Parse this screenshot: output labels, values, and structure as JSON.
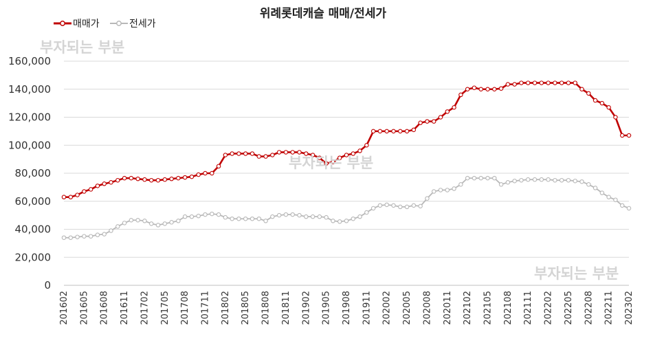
{
  "chart_data": {
    "type": "line",
    "title": "위례롯데캐슬 매매/전세가",
    "xlabel": "",
    "ylabel": "",
    "ylim": [
      0,
      160000
    ],
    "yticks": [
      "0",
      "20,000",
      "40,000",
      "60,000",
      "80,000",
      "100,000",
      "120,000",
      "140,000",
      "160,000"
    ],
    "x_tick_labels": [
      "201602",
      "201605",
      "201608",
      "201611",
      "201702",
      "201705",
      "201708",
      "201711",
      "201802",
      "201805",
      "201808",
      "201811",
      "201902",
      "201905",
      "201908",
      "201911",
      "202002",
      "202005",
      "202008",
      "202011",
      "202102",
      "202105",
      "202108",
      "202111",
      "202202",
      "202205",
      "202208",
      "202211",
      "202302"
    ],
    "x": [
      "201602",
      "201603",
      "201604",
      "201605",
      "201606",
      "201607",
      "201608",
      "201609",
      "201610",
      "201611",
      "201612",
      "201701",
      "201702",
      "201703",
      "201704",
      "201705",
      "201706",
      "201707",
      "201708",
      "201709",
      "201710",
      "201711",
      "201712",
      "201801",
      "201802",
      "201803",
      "201804",
      "201805",
      "201806",
      "201807",
      "201808",
      "201809",
      "201810",
      "201811",
      "201812",
      "201901",
      "201902",
      "201903",
      "201904",
      "201905",
      "201906",
      "201907",
      "201908",
      "201909",
      "201910",
      "201911",
      "201912",
      "202001",
      "202002",
      "202003",
      "202004",
      "202005",
      "202006",
      "202007",
      "202008",
      "202009",
      "202010",
      "202011",
      "202012",
      "202101",
      "202102",
      "202103",
      "202104",
      "202105",
      "202106",
      "202107",
      "202108",
      "202109",
      "202110",
      "202111",
      "202112",
      "202201",
      "202202",
      "202203",
      "202204",
      "202205",
      "202206",
      "202207",
      "202208",
      "202209",
      "202210",
      "202211",
      "202212",
      "202301",
      "202302"
    ],
    "grid": "horizontal",
    "legend_position": "top-left",
    "series": [
      {
        "name": "매매가",
        "color": "#c00000",
        "values": [
          63000,
          63000,
          64500,
          67000,
          68500,
          71000,
          72500,
          73500,
          75000,
          76500,
          76500,
          76000,
          75500,
          75000,
          75000,
          75500,
          76000,
          76500,
          77000,
          77500,
          79000,
          80000,
          80000,
          85000,
          93000,
          94000,
          94000,
          94000,
          94000,
          92000,
          92000,
          93000,
          95000,
          95000,
          95000,
          95000,
          94000,
          93000,
          91000,
          87000,
          88000,
          91000,
          93000,
          94000,
          96000,
          100000,
          110000,
          110000,
          110000,
          110000,
          110000,
          110000,
          111000,
          116000,
          117000,
          117000,
          120000,
          124000,
          127000,
          136000,
          140000,
          141000,
          140000,
          140000,
          140000,
          140500,
          143500,
          143500,
          144500,
          144500,
          144500,
          144500,
          144500,
          144500,
          144500,
          144500,
          144500,
          140000,
          137000,
          132000,
          130000,
          127000,
          120000,
          107000,
          107000
        ]
      },
      {
        "name": "전세가",
        "color": "#b8b8b8",
        "values": [
          34000,
          34000,
          34500,
          35000,
          35000,
          36000,
          36500,
          39000,
          42000,
          44500,
          46500,
          46500,
          46000,
          44000,
          43000,
          44000,
          45000,
          46000,
          49000,
          49000,
          49500,
          50500,
          51000,
          50500,
          48500,
          47500,
          47500,
          47500,
          47500,
          47500,
          46000,
          49000,
          50000,
          50500,
          50500,
          50000,
          49000,
          49000,
          49000,
          48500,
          46000,
          45500,
          46000,
          47500,
          49000,
          52000,
          55000,
          57000,
          57500,
          57000,
          56000,
          56000,
          57000,
          56500,
          62000,
          67000,
          68000,
          68000,
          69000,
          72000,
          76500,
          76500,
          76500,
          76500,
          76500,
          72000,
          73500,
          74500,
          75000,
          75500,
          75500,
          75500,
          75500,
          75000,
          75000,
          75000,
          74500,
          74000,
          72000,
          69500,
          66000,
          63000,
          61000,
          57000,
          55000
        ]
      }
    ],
    "annotations": [
      "부자되는 부분",
      "부자되는 부분",
      "부자되는 부분"
    ]
  }
}
